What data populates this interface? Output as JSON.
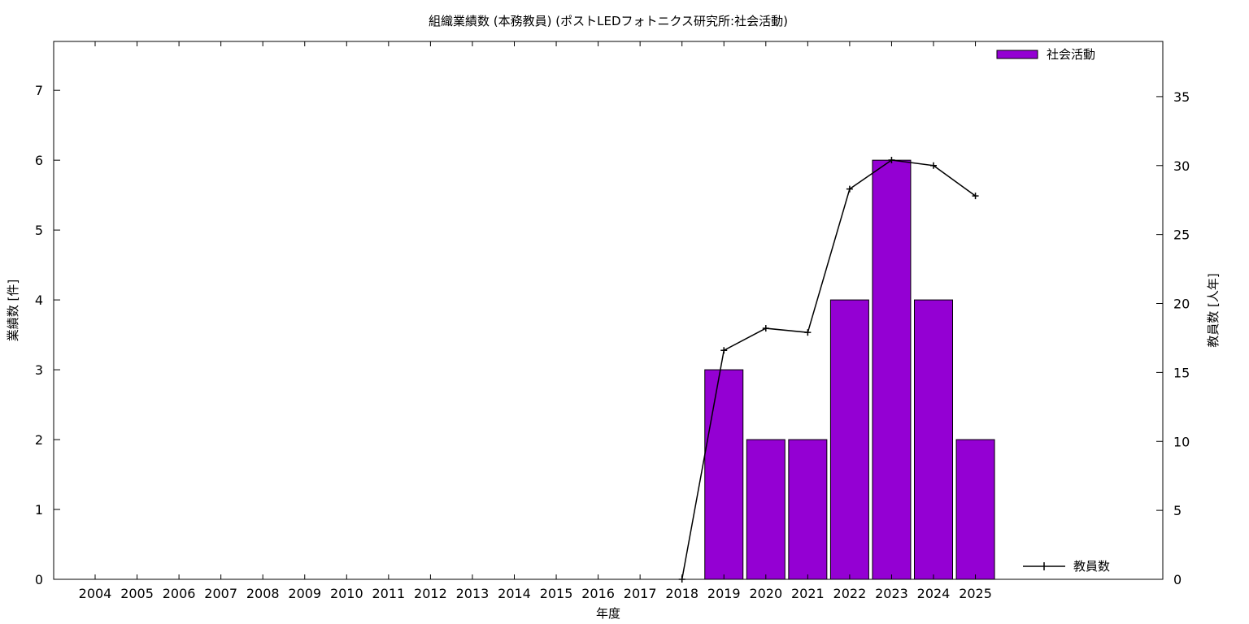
{
  "chart_data": {
    "type": "bar",
    "title": "組織業績数 (本務教員) (ポストLEDフォトニクス研究所:社会活動)",
    "xlabel": "年度",
    "ylabel": "業績数 [件]",
    "y2label": "教員数 [人年]",
    "categories": [
      "2004",
      "2005",
      "2006",
      "2007",
      "2008",
      "2009",
      "2010",
      "2011",
      "2012",
      "2013",
      "2014",
      "2015",
      "2016",
      "2017",
      "2018",
      "2019",
      "2020",
      "2021",
      "2022",
      "2023",
      "2024",
      "2025"
    ],
    "ylim": [
      0,
      7.7
    ],
    "y2lim": [
      0,
      39
    ],
    "yticks": [
      0,
      1,
      2,
      3,
      4,
      5,
      6,
      7
    ],
    "y2ticks": [
      0,
      5,
      10,
      15,
      20,
      25,
      30,
      35
    ],
    "bar_series": {
      "name": "社会活動",
      "color": "#9400d3",
      "values": [
        null,
        null,
        null,
        null,
        null,
        null,
        null,
        null,
        null,
        null,
        null,
        null,
        null,
        null,
        null,
        3,
        2,
        2,
        4,
        6,
        4,
        2
      ]
    },
    "line_series": {
      "name": "教員数",
      "color": "#000000",
      "axis": "y2",
      "values": [
        null,
        null,
        null,
        null,
        null,
        null,
        null,
        null,
        null,
        null,
        null,
        null,
        null,
        null,
        0,
        16.6,
        18.2,
        17.9,
        28.3,
        30.4,
        30.0,
        27.8
      ]
    },
    "legend": {
      "bar_position": "top-right",
      "line_position": "bottom-right"
    },
    "grid": false
  }
}
